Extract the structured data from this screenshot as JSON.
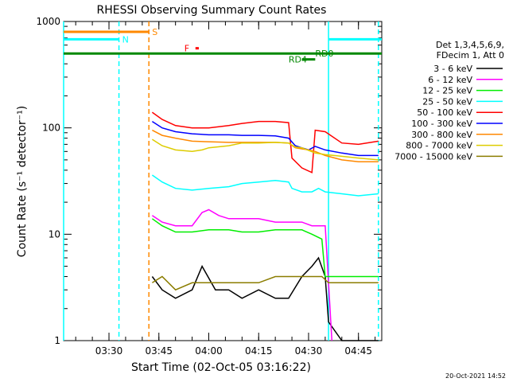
{
  "chart_data": {
    "type": "line",
    "title": "RHESSI Observing Summary Count Rates",
    "xlabel": "Start Time (02-Oct-05 03:16:22)",
    "ylabel": "Count Rate (s⁻¹ detector⁻¹)",
    "yscale": "log",
    "ylim": [
      1,
      1000
    ],
    "xlim_minutes": [
      0,
      34,
      50,
      97
    ],
    "x_ticks": [
      "03:30",
      "03:45",
      "04:00",
      "04:15",
      "04:30",
      "04:45"
    ],
    "y_ticks": [
      "1",
      "10",
      "100",
      "1000"
    ],
    "x_start_time": "03:16:22",
    "x_end_time": "04:52:00",
    "grid": false,
    "legend_position": "right",
    "legend_header": [
      "Det 1,3,4,5,6,9,",
      "FDecim 1, Att 0"
    ],
    "series": [
      {
        "name": "3 - 6 keV",
        "color": "#000000",
        "t": [
          "03:43",
          "03:46",
          "03:50",
          "03:55",
          "03:58",
          "04:02",
          "04:06",
          "04:10",
          "04:15",
          "04:20",
          "04:24",
          "04:28",
          "04:31",
          "04:33",
          "04:35",
          "04:36",
          "04:40",
          "04:45",
          "04:51"
        ],
        "v": [
          4,
          3,
          2.5,
          3,
          5,
          3,
          3,
          2.5,
          3,
          2.5,
          2.5,
          4,
          5,
          6,
          4,
          1.5,
          1,
          1,
          1
        ]
      },
      {
        "name": "6 - 12 keV",
        "color": "#ff00ff",
        "t": [
          "03:43",
          "03:46",
          "03:50",
          "03:55",
          "03:58",
          "04:00",
          "04:03",
          "04:06",
          "04:10",
          "04:15",
          "04:20",
          "04:24",
          "04:28",
          "04:31",
          "04:33",
          "04:35",
          "04:37"
        ],
        "v": [
          15,
          13,
          12,
          12,
          16,
          17,
          15,
          14,
          14,
          14,
          13,
          13,
          13,
          12,
          12,
          12,
          1
        ]
      },
      {
        "name": "12 - 25 keV",
        "color": "#00ee00",
        "t": [
          "03:43",
          "03:46",
          "03:50",
          "03:55",
          "04:00",
          "04:06",
          "04:10",
          "04:15",
          "04:20",
          "04:24",
          "04:28",
          "04:31",
          "04:34",
          "04:35",
          "04:40",
          "04:45",
          "04:51"
        ],
        "v": [
          14,
          12,
          10.5,
          10.5,
          11,
          11,
          10.5,
          10.5,
          11,
          11,
          11,
          10,
          9,
          4,
          4,
          4,
          4
        ]
      },
      {
        "name": "25 - 50 keV",
        "color": "#00ffff",
        "t": [
          "03:43",
          "03:46",
          "03:50",
          "03:55",
          "04:00",
          "04:06",
          "04:10",
          "04:15",
          "04:20",
          "04:24",
          "04:25",
          "04:28",
          "04:31",
          "04:33",
          "04:35",
          "04:40",
          "04:45",
          "04:51"
        ],
        "v": [
          36,
          31,
          27,
          26,
          27,
          28,
          30,
          31,
          32,
          31,
          27,
          25,
          25,
          27,
          25,
          24,
          23,
          24
        ]
      },
      {
        "name": "50 - 100 keV",
        "color": "#ff0000",
        "t": [
          "03:43",
          "03:46",
          "03:50",
          "03:55",
          "04:00",
          "04:06",
          "04:10",
          "04:15",
          "04:20",
          "04:24",
          "04:25",
          "04:28",
          "04:31",
          "04:32",
          "04:35",
          "04:40",
          "04:45",
          "04:51"
        ],
        "v": [
          140,
          120,
          105,
          100,
          100,
          105,
          110,
          115,
          115,
          112,
          52,
          42,
          38,
          95,
          92,
          72,
          70,
          75
        ]
      },
      {
        "name": "100 - 300 keV",
        "color": "#0000ff",
        "t": [
          "03:43",
          "03:46",
          "03:50",
          "03:55",
          "04:00",
          "04:06",
          "04:10",
          "04:15",
          "04:20",
          "04:24",
          "04:26",
          "04:30",
          "04:32",
          "04:35",
          "04:40",
          "04:45",
          "04:51"
        ],
        "v": [
          115,
          100,
          92,
          88,
          86,
          86,
          85,
          85,
          84,
          80,
          68,
          62,
          67,
          62,
          58,
          55,
          55
        ]
      },
      {
        "name": "300 - 800 keV",
        "color": "#ff8800",
        "t": [
          "03:43",
          "03:46",
          "03:50",
          "03:55",
          "04:00",
          "04:06",
          "04:10",
          "04:15",
          "04:20",
          "04:24",
          "04:26",
          "04:30",
          "04:32",
          "04:35",
          "04:40",
          "04:45",
          "04:51"
        ],
        "v": [
          95,
          85,
          80,
          75,
          74,
          73,
          73,
          73,
          73,
          72,
          65,
          62,
          60,
          55,
          50,
          48,
          48
        ]
      },
      {
        "name": "800 - 7000 keV",
        "color": "#ddcc00",
        "t": [
          "03:43",
          "03:46",
          "03:50",
          "03:55",
          "03:58",
          "04:00",
          "04:06",
          "04:10",
          "04:15",
          "04:20",
          "04:24",
          "04:26",
          "04:28",
          "04:32",
          "04:35",
          "04:40",
          "04:45",
          "04:51"
        ],
        "v": [
          78,
          68,
          62,
          60,
          62,
          65,
          68,
          72,
          72,
          73,
          72,
          66,
          65,
          58,
          56,
          54,
          52,
          50
        ]
      },
      {
        "name": "7000 - 15000 keV",
        "color": "#8b7d00",
        "t": [
          "03:43",
          "03:46",
          "03:50",
          "03:55",
          "04:00",
          "04:06",
          "04:10",
          "04:15",
          "04:20",
          "04:24",
          "04:28",
          "04:31",
          "04:34",
          "04:36",
          "04:40",
          "04:45",
          "04:51"
        ],
        "v": [
          3.5,
          4,
          3,
          3.5,
          3.5,
          3.5,
          3.5,
          3.5,
          4,
          4,
          4,
          4,
          4,
          3.5,
          3.5,
          3.5,
          3.5
        ]
      }
    ],
    "flags": [
      {
        "label": "S",
        "color": "#ff8800",
        "t_start": "03:16:22",
        "t_end": "03:42",
        "v": 800
      },
      {
        "label": "N",
        "color": "#00ffff",
        "t_start": "03:16:22",
        "t_end": "03:33",
        "v": 680
      },
      {
        "label": "N",
        "color": "#00ffff",
        "t_start": "04:36",
        "t_end": "04:52",
        "v": 680,
        "show_label": false
      },
      {
        "label": "F",
        "color": "#ff0000",
        "t_start": "03:56",
        "t_end": "03:57",
        "v": 560
      },
      {
        "label": "RD0",
        "color": "#008800",
        "t_start": "03:16:22",
        "t_end": "04:52",
        "v": 500,
        "label_at": "04:32"
      },
      {
        "label": "RD4",
        "color": "#008800",
        "t_start": "04:28",
        "t_end": "04:32",
        "v": 440,
        "label_at": "04:24"
      }
    ],
    "vertical_markers": [
      {
        "t": "03:16:22",
        "color": "#00ffff",
        "style": "solid"
      },
      {
        "t": "03:33",
        "color": "#00ffff",
        "style": "dashed"
      },
      {
        "t": "03:42",
        "color": "#ff8800",
        "style": "dashed"
      },
      {
        "t": "04:36",
        "color": "#00ffff",
        "style": "solid"
      },
      {
        "t": "04:51",
        "color": "#00ffff",
        "style": "dashed"
      }
    ]
  },
  "footer": {
    "timestamp": "20-Oct-2021 14:52"
  }
}
